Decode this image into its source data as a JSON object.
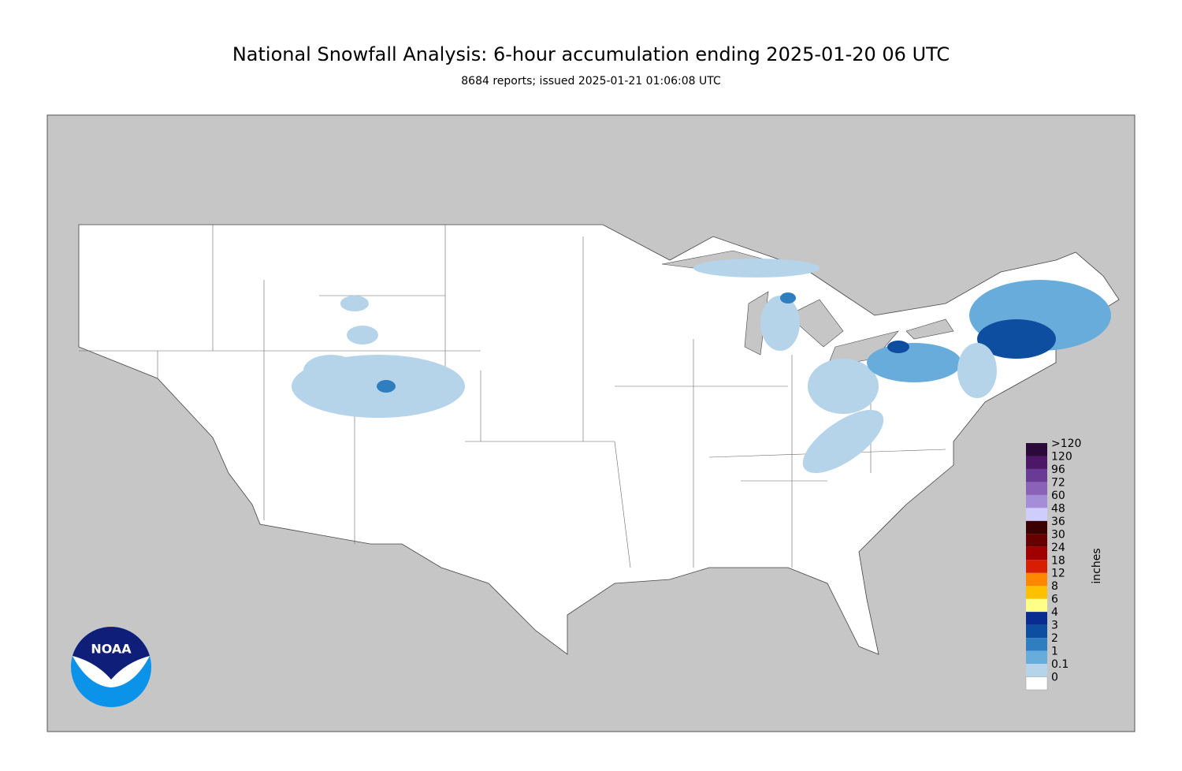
{
  "header": {
    "title": "National Snowfall Analysis: 6-hour accumulation ending 2025-01-20 06 UTC",
    "subtitle": "8684 reports; issued 2025-01-21 01:06:08 UTC"
  },
  "legend": {
    "unit": "inches",
    "items": [
      {
        "label": ">120",
        "color": "#2b0a3b"
      },
      {
        "label": "120",
        "color": "#4c1766"
      },
      {
        "label": "96",
        "color": "#6a3b94"
      },
      {
        "label": "72",
        "color": "#8a62b7"
      },
      {
        "label": "60",
        "color": "#a58ed8"
      },
      {
        "label": "48",
        "color": "#cfcdfa"
      },
      {
        "label": "36",
        "color": "#3b0000"
      },
      {
        "label": "30",
        "color": "#680000"
      },
      {
        "label": "24",
        "color": "#a00000"
      },
      {
        "label": "18",
        "color": "#d81e00"
      },
      {
        "label": "12",
        "color": "#ff8800"
      },
      {
        "label": "8",
        "color": "#ffc000"
      },
      {
        "label": "6",
        "color": "#ffff88"
      },
      {
        "label": "4",
        "color": "#082c90"
      },
      {
        "label": "3",
        "color": "#0d4ea0"
      },
      {
        "label": "2",
        "color": "#2e7ec0"
      },
      {
        "label": "1",
        "color": "#68acdc"
      },
      {
        "label": "0.1",
        "color": "#b5d4ea"
      },
      {
        "label": "0",
        "color": "#ffffff"
      }
    ]
  },
  "logo": {
    "text": "NOAA"
  }
}
